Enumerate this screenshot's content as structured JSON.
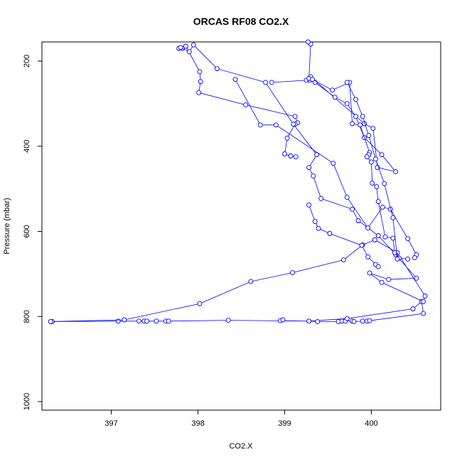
{
  "chart_data": {
    "type": "line",
    "title": "ORCAS RF08 CO2.X",
    "xlabel": "CO2.X",
    "ylabel": "Pressure (mbar)",
    "xlim": [
      396.2,
      400.8
    ],
    "ylim": [
      1020,
      155
    ],
    "y_inverted": true,
    "grid": false,
    "series_color": "#0000ff",
    "marker": "open-circle",
    "x_ticks": [
      397,
      398,
      399,
      400
    ],
    "y_ticks": [
      200,
      400,
      600,
      800,
      1000
    ],
    "series": [
      {
        "x": [
          396.3,
          396.32,
          397.08,
          397.32,
          397.38,
          397.41,
          397.52,
          397.63,
          397.66,
          398.35,
          399.28,
          399.38,
          399.62,
          399.66,
          399.7,
          399.78,
          399.8,
          399.9,
          399.95,
          399.98,
          400.6,
          400.58,
          400.48,
          399.72,
          399.28,
          398.95,
          398.98
        ],
        "y": [
          812,
          812,
          811,
          811,
          811,
          811,
          811,
          811,
          811,
          809,
          811,
          812,
          812,
          811,
          811,
          811,
          812,
          811,
          811,
          810,
          793,
          765,
          782,
          805,
          811,
          810,
          808
        ]
      },
      {
        "x": [
          396.3,
          397.15,
          398.02,
          398.61,
          399.09,
          399.68,
          399.9,
          400.04,
          400.3,
          400.62,
          400.6,
          400.12,
          399.98,
          400.2,
          400.52,
          400.28
        ],
        "y": [
          812,
          808,
          770,
          718,
          697,
          667,
          632,
          620,
          650,
          752,
          765,
          720,
          698,
          713,
          710,
          655
        ]
      },
      {
        "x": [
          397.78,
          397.82,
          397.86,
          398.02,
          398.03,
          398.01,
          398.55,
          399.12,
          399.15,
          399.12,
          399.03,
          399.0,
          399.07,
          399.13
        ],
        "y": [
          170,
          170,
          165,
          225,
          248,
          274,
          303,
          330,
          345,
          348,
          381,
          418,
          423,
          425
        ]
      },
      {
        "x": [
          397.8,
          397.9,
          397.95,
          398.22,
          398.78,
          399.1,
          399.37,
          399.28,
          399.33,
          399.42,
          399.78,
          399.85,
          400.08,
          400.32,
          400.42
        ],
        "y": [
          168,
          178,
          162,
          218,
          250,
          348,
          420,
          450,
          470,
          523,
          548,
          575,
          610,
          663,
          665
        ]
      },
      {
        "x": [
          398.43,
          398.72,
          398.9,
          399.56,
          399.72,
          399.96,
          400.13,
          400.22,
          400.42,
          400.52,
          400.5
        ],
        "y": [
          243,
          350,
          350,
          440,
          520,
          592,
          543,
          548,
          617,
          655,
          662
        ]
      },
      {
        "x": [
          398.85,
          399.25,
          399.3,
          399.92,
          400.02,
          400.07,
          400.28,
          400.12,
          399.92,
          399.82,
          399.72,
          399.58,
          399.35,
          399.29,
          399.28,
          399.3,
          399.27
        ],
        "y": [
          250,
          245,
          237,
          347,
          358,
          450,
          460,
          420,
          380,
          330,
          300,
          285,
          250,
          245,
          241,
          160,
          155
        ]
      },
      {
        "x": [
          399.32,
          399.55,
          399.75,
          399.78,
          399.87,
          399.98,
          399.97,
          399.95,
          400.0,
          400.01,
          400.06,
          400.08,
          400.16,
          400.25,
          400.27
        ],
        "y": [
          243,
          268,
          250,
          347,
          350,
          415,
          420,
          425,
          437,
          487,
          495,
          530,
          613,
          616,
          650
        ]
      },
      {
        "x": [
          399.28,
          399.35,
          399.39,
          399.52,
          399.89,
          399.96,
          400.05,
          400.08
        ],
        "y": [
          538,
          577,
          593,
          605,
          633,
          660,
          678,
          683
        ]
      },
      {
        "x": [
          399.72,
          399.82,
          399.9,
          399.97,
          400.05,
          400.15,
          400.25,
          400.3
        ],
        "y": [
          250,
          290,
          330,
          375,
          430,
          488,
          568,
          665
        ]
      }
    ]
  }
}
